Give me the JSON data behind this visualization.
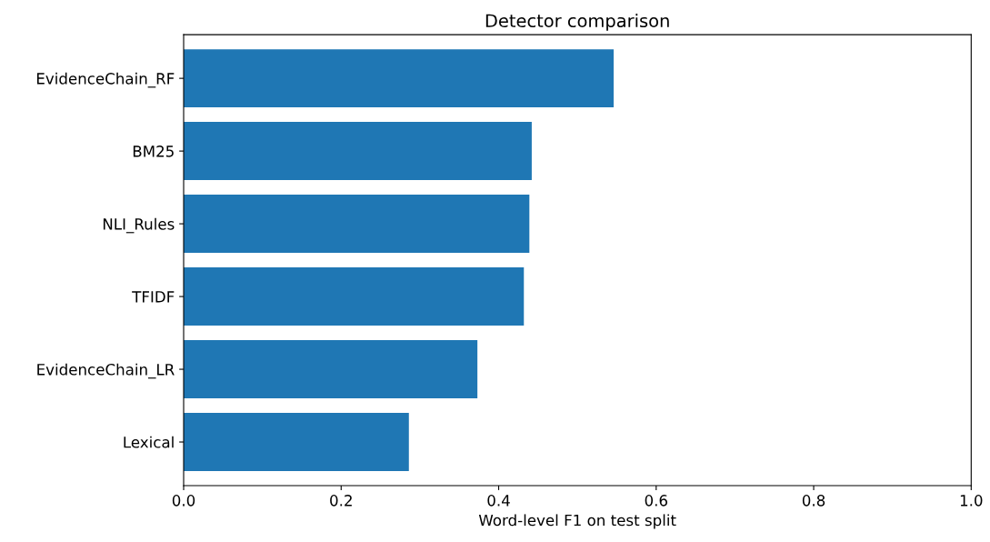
{
  "chart_data": {
    "type": "bar",
    "orientation": "horizontal",
    "title": "Detector comparison",
    "xlabel": "Word-level F1 on test split",
    "categories": [
      "EvidenceChain_RF",
      "BM25",
      "NLI_Rules",
      "TFIDF",
      "EvidenceChain_LR",
      "Lexical"
    ],
    "values": [
      0.546,
      0.442,
      0.439,
      0.432,
      0.373,
      0.286
    ],
    "color": "#1f77b4",
    "xlim": [
      0,
      1
    ],
    "xticks": [
      {
        "value": 0,
        "label": "0.0"
      },
      {
        "value": 0.2,
        "label": "0.2"
      },
      {
        "value": 0.4,
        "label": "0.4"
      },
      {
        "value": 0.6,
        "label": "0.6"
      },
      {
        "value": 0.8,
        "label": "0.8"
      },
      {
        "value": 1,
        "label": "1.0"
      }
    ]
  }
}
